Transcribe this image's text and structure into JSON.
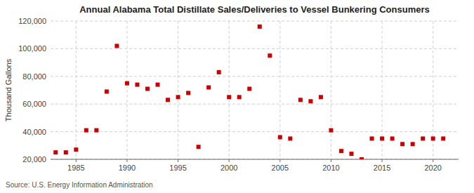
{
  "chart_data": {
    "type": "scatter",
    "title": "Annual Alabama Total Distillate Sales/Deliveries to Vessel Bunkering Consumers",
    "ylabel": "Thousand Gallons",
    "source": "Source: U.S. Energy Information Administration",
    "color": "#CC0000",
    "marker": "square",
    "grid": true,
    "xlim": [
      1982.5,
      2022.5
    ],
    "ylim": [
      20000,
      120000
    ],
    "xticks": [
      1985,
      1990,
      1995,
      2000,
      2005,
      2010,
      2015,
      2020
    ],
    "yticks": [
      {
        "value": 20000,
        "label": "20,000"
      },
      {
        "value": 40000,
        "label": "40,000"
      },
      {
        "value": 60000,
        "label": "60,000"
      },
      {
        "value": 80000,
        "label": "80,000"
      },
      {
        "value": 100000,
        "label": "100,000"
      },
      {
        "value": 120000,
        "label": "120,000"
      }
    ],
    "x": [
      1983,
      1984,
      1985,
      1986,
      1987,
      1988,
      1989,
      1990,
      1991,
      1992,
      1993,
      1994,
      1995,
      1996,
      1997,
      1998,
      1999,
      2000,
      2001,
      2002,
      2003,
      2004,
      2005,
      2006,
      2007,
      2008,
      2009,
      2010,
      2011,
      2012,
      2013,
      2014,
      2015,
      2016,
      2017,
      2018,
      2019,
      2020,
      2021
    ],
    "values": [
      25000,
      25000,
      27000,
      41000,
      41000,
      69000,
      102000,
      75000,
      74000,
      71000,
      74000,
      63000,
      65000,
      68000,
      29000,
      72000,
      83000,
      65000,
      65000,
      71000,
      116000,
      95000,
      36000,
      35000,
      63000,
      62000,
      65000,
      41000,
      26000,
      24000,
      20000,
      35000,
      35000,
      35000,
      31000,
      31000,
      35000,
      35000,
      35000
    ]
  }
}
